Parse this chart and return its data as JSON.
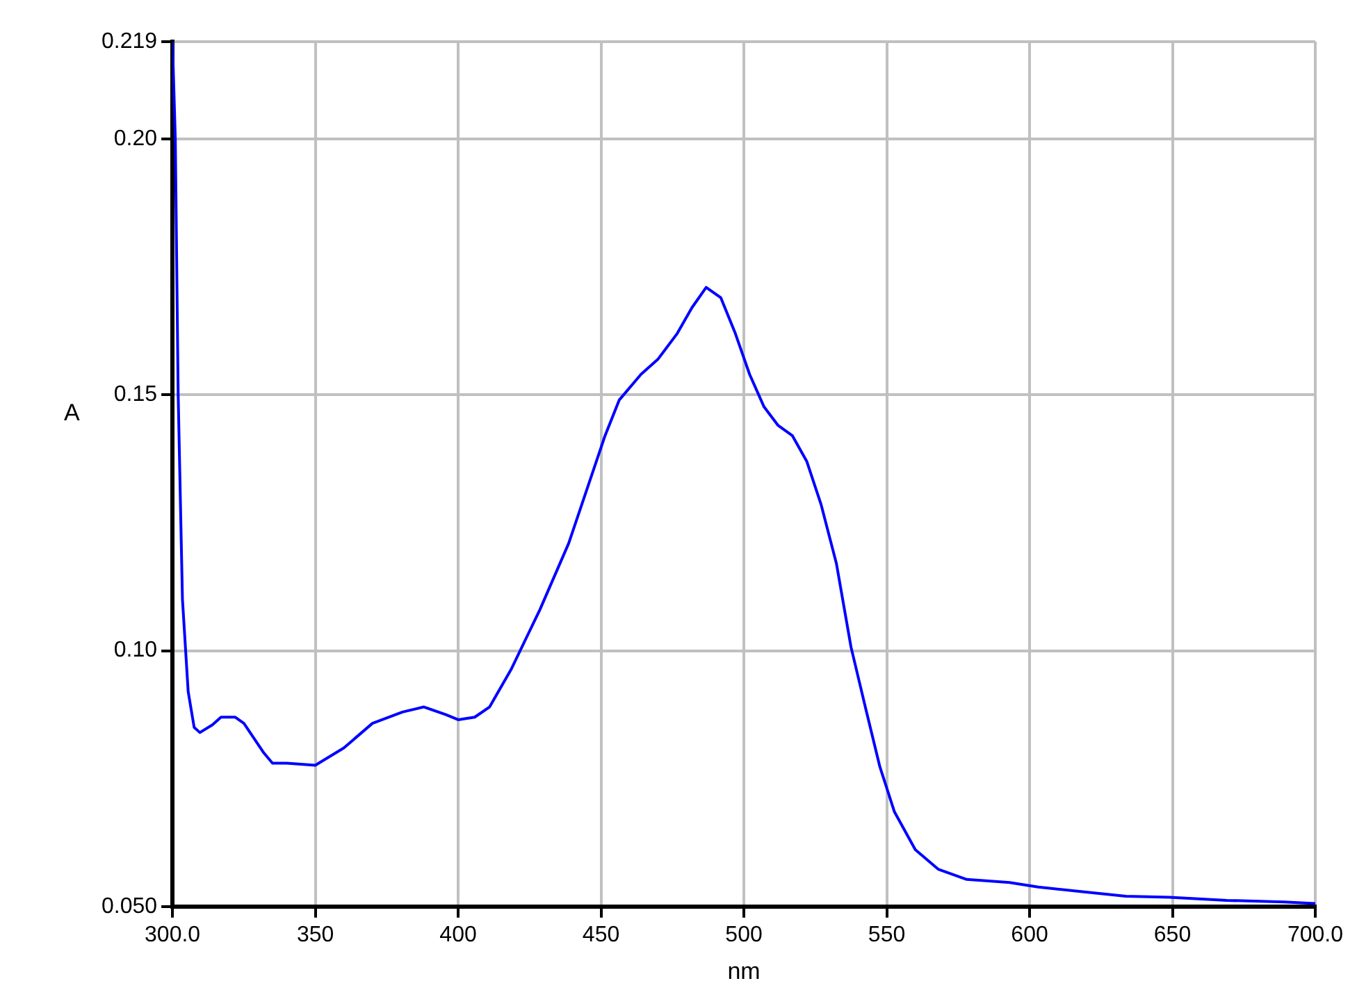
{
  "chart_data": {
    "type": "line",
    "xlabel": "nm",
    "ylabel": "A",
    "x": [
      300,
      301,
      302,
      303.5,
      305.5,
      307.6,
      309.6,
      314,
      317,
      322,
      325,
      332,
      335,
      340,
      350,
      360,
      370,
      380.5,
      388,
      395.7,
      400,
      405.8,
      411,
      418.5,
      428.6,
      438.7,
      451.4,
      456.4,
      464,
      470,
      476.7,
      481.8,
      486.8,
      491.9,
      497,
      502,
      507,
      512,
      517,
      522,
      527,
      532.4,
      537.5,
      542.5,
      547.6,
      552.7,
      560,
      568,
      578,
      593,
      603,
      618.5,
      633.7,
      649,
      669,
      689,
      700
    ],
    "series": [
      {
        "color": "#0000ff",
        "values": [
          0.219,
          0.2,
          0.15,
          0.11,
          0.092,
          0.085,
          0.084,
          0.0855,
          0.087,
          0.087,
          0.0858,
          0.08,
          0.078,
          0.078,
          0.0776,
          0.081,
          0.0858,
          0.088,
          0.089,
          0.0875,
          0.0865,
          0.087,
          0.089,
          0.0963,
          0.108,
          0.121,
          0.142,
          0.149,
          0.154,
          0.157,
          0.162,
          0.167,
          0.171,
          0.169,
          0.162,
          0.154,
          0.1477,
          0.144,
          0.142,
          0.137,
          0.1286,
          0.117,
          0.1007,
          0.089,
          0.0773,
          0.0685,
          0.0611,
          0.0573,
          0.0553,
          0.0547,
          0.0538,
          0.0529,
          0.052,
          0.0518,
          0.0512,
          0.0509,
          0.0506
        ]
      }
    ],
    "xlim": [
      300,
      700
    ],
    "xticks": [
      {
        "value": 300,
        "label": "300.0"
      },
      350,
      400,
      450,
      500,
      550,
      600,
      650,
      {
        "value": 700,
        "label": "700.0"
      }
    ],
    "ylim": [
      0.05,
      0.219
    ],
    "yticks": [
      {
        "value": 0.05,
        "label": "0.050"
      },
      {
        "value": 0.1,
        "label": "0.10"
      },
      {
        "value": 0.15,
        "label": "0.15"
      },
      {
        "value": 0.2,
        "label": "0.20"
      },
      0.219
    ],
    "grid": true,
    "legend": false,
    "marker": "none",
    "line_style": "solid"
  }
}
